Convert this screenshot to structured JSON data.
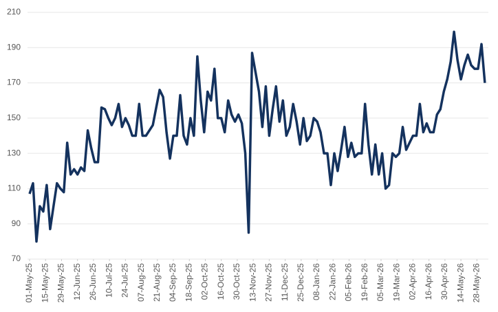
{
  "chart_data": {
    "type": "line",
    "x": [
      "2025-05-01",
      "2025-05-04",
      "2025-05-07",
      "2025-05-10",
      "2025-05-13",
      "2025-05-16",
      "2025-05-19",
      "2025-05-22",
      "2025-05-25",
      "2025-05-28",
      "2025-05-31",
      "2025-06-03",
      "2025-06-06",
      "2025-06-09",
      "2025-06-12",
      "2025-06-15",
      "2025-06-18",
      "2025-06-21",
      "2025-06-24",
      "2025-06-27",
      "2025-06-30",
      "2025-07-03",
      "2025-07-06",
      "2025-07-09",
      "2025-07-12",
      "2025-07-15",
      "2025-07-18",
      "2025-07-21",
      "2025-07-24",
      "2025-07-27",
      "2025-07-30",
      "2025-08-02",
      "2025-08-05",
      "2025-08-08",
      "2025-08-11",
      "2025-08-14",
      "2025-08-17",
      "2025-08-20",
      "2025-08-23",
      "2025-08-26",
      "2025-08-29",
      "2025-09-01",
      "2025-09-04",
      "2025-09-07",
      "2025-09-10",
      "2025-09-13",
      "2025-09-16",
      "2025-09-19",
      "2025-09-22",
      "2025-09-25",
      "2025-09-28",
      "2025-10-01",
      "2025-10-04",
      "2025-10-07",
      "2025-10-10",
      "2025-10-13",
      "2025-10-16",
      "2025-10-19",
      "2025-10-22",
      "2025-10-25",
      "2025-10-28",
      "2025-10-31",
      "2025-11-03",
      "2025-11-06",
      "2025-11-09",
      "2025-11-12",
      "2025-11-15",
      "2025-11-18",
      "2025-11-21",
      "2025-11-24",
      "2025-11-27",
      "2025-11-30",
      "2025-12-03",
      "2025-12-06",
      "2025-12-09",
      "2025-12-12",
      "2025-12-15",
      "2025-12-18",
      "2025-12-21",
      "2025-12-24",
      "2025-12-27",
      "2025-12-30",
      "2026-01-02",
      "2026-01-05",
      "2026-01-08",
      "2026-01-11",
      "2026-01-14",
      "2026-01-17",
      "2026-01-20",
      "2026-01-23",
      "2026-01-26",
      "2026-01-29",
      "2026-02-01",
      "2026-02-04",
      "2026-02-07",
      "2026-02-10",
      "2026-02-13",
      "2026-02-16",
      "2026-02-19",
      "2026-02-22",
      "2026-02-25",
      "2026-02-28",
      "2026-03-03",
      "2026-03-06",
      "2026-03-09",
      "2026-03-12",
      "2026-03-15",
      "2026-03-18",
      "2026-03-21",
      "2026-03-24",
      "2026-03-27",
      "2026-03-30",
      "2026-04-02",
      "2026-04-05",
      "2026-04-08",
      "2026-04-11",
      "2026-04-14",
      "2026-04-17",
      "2026-04-20",
      "2026-04-23",
      "2026-04-26",
      "2026-04-29",
      "2026-05-02",
      "2026-05-05",
      "2026-05-08",
      "2026-05-11",
      "2026-05-14",
      "2026-05-17",
      "2026-05-20",
      "2026-05-23",
      "2026-05-26",
      "2026-05-29",
      "2026-06-01",
      "2026-06-04"
    ],
    "series": [
      {
        "color": "#14325e",
        "values": [
          107,
          113,
          80,
          100,
          97,
          112,
          87,
          100,
          113,
          110,
          108,
          136,
          118,
          121,
          118,
          122,
          120,
          143,
          133,
          125,
          125,
          156,
          155,
          150,
          146,
          150,
          158,
          145,
          150,
          146,
          140,
          140,
          158,
          140,
          140,
          143,
          146,
          156,
          166,
          162,
          142,
          127,
          140,
          140,
          163,
          140,
          135,
          150,
          140,
          185,
          160,
          142,
          165,
          160,
          178,
          150,
          150,
          142,
          160,
          152,
          148,
          152,
          147,
          130,
          85,
          187,
          176,
          165,
          145,
          168,
          140,
          155,
          168,
          148,
          160,
          140,
          145,
          158,
          148,
          135,
          150,
          137,
          140,
          150,
          148,
          142,
          130,
          130,
          112,
          130,
          120,
          132,
          145,
          128,
          136,
          128,
          130,
          130,
          158,
          135,
          118,
          135,
          118,
          130,
          110,
          112,
          130,
          128,
          130,
          145,
          132,
          136,
          140,
          140,
          158,
          142,
          147,
          142,
          142,
          152,
          155,
          165,
          172,
          182,
          199,
          183,
          172,
          180,
          186,
          180,
          178,
          178,
          192,
          170
        ]
      }
    ],
    "xlim": [
      "2025-05-01",
      "2026-06-05"
    ],
    "xticks": [
      {
        "value": "2025-05-01",
        "label": "01-May-25"
      },
      {
        "value": "2025-05-15",
        "label": "15-May-25"
      },
      {
        "value": "2025-05-29",
        "label": "29-May-25"
      },
      {
        "value": "2025-06-12",
        "label": "12-Jun-25"
      },
      {
        "value": "2025-06-26",
        "label": "26-Jun-25"
      },
      {
        "value": "2025-07-10",
        "label": "10-Jul-25"
      },
      {
        "value": "2025-07-24",
        "label": "24-Jul-25"
      },
      {
        "value": "2025-08-07",
        "label": "07-Aug-25"
      },
      {
        "value": "2025-08-21",
        "label": "21-Aug-25"
      },
      {
        "value": "2025-09-04",
        "label": "04-Sep-25"
      },
      {
        "value": "2025-09-18",
        "label": "18-Sep-25"
      },
      {
        "value": "2025-10-02",
        "label": "02-Oct-25"
      },
      {
        "value": "2025-10-16",
        "label": "16-Oct-25"
      },
      {
        "value": "2025-10-30",
        "label": "30-Oct-25"
      },
      {
        "value": "2025-11-13",
        "label": "13-Nov-25"
      },
      {
        "value": "2025-11-27",
        "label": "27-Nov-25"
      },
      {
        "value": "2025-12-11",
        "label": "11-Dec-25"
      },
      {
        "value": "2025-12-25",
        "label": "25-Dec-25"
      },
      {
        "value": "2026-01-08",
        "label": "08-Jan-26"
      },
      {
        "value": "2026-01-22",
        "label": "22-Jan-26"
      },
      {
        "value": "2026-02-05",
        "label": "05-Feb-26"
      },
      {
        "value": "2026-02-19",
        "label": "19-Feb-26"
      },
      {
        "value": "2026-03-05",
        "label": "05-Mar-26"
      },
      {
        "value": "2026-03-19",
        "label": "19-Mar-26"
      },
      {
        "value": "2026-04-02",
        "label": "02-Apr-26"
      },
      {
        "value": "2026-04-16",
        "label": "16-Apr-26"
      },
      {
        "value": "2026-04-30",
        "label": "30-Apr-26"
      },
      {
        "value": "2026-05-14",
        "label": "14-May-26"
      },
      {
        "value": "2026-05-28",
        "label": "28-May-26"
      }
    ],
    "ylim": [
      70,
      210
    ],
    "yticks": [
      70,
      90,
      110,
      130,
      150,
      170,
      190,
      210
    ],
    "grid": true
  }
}
